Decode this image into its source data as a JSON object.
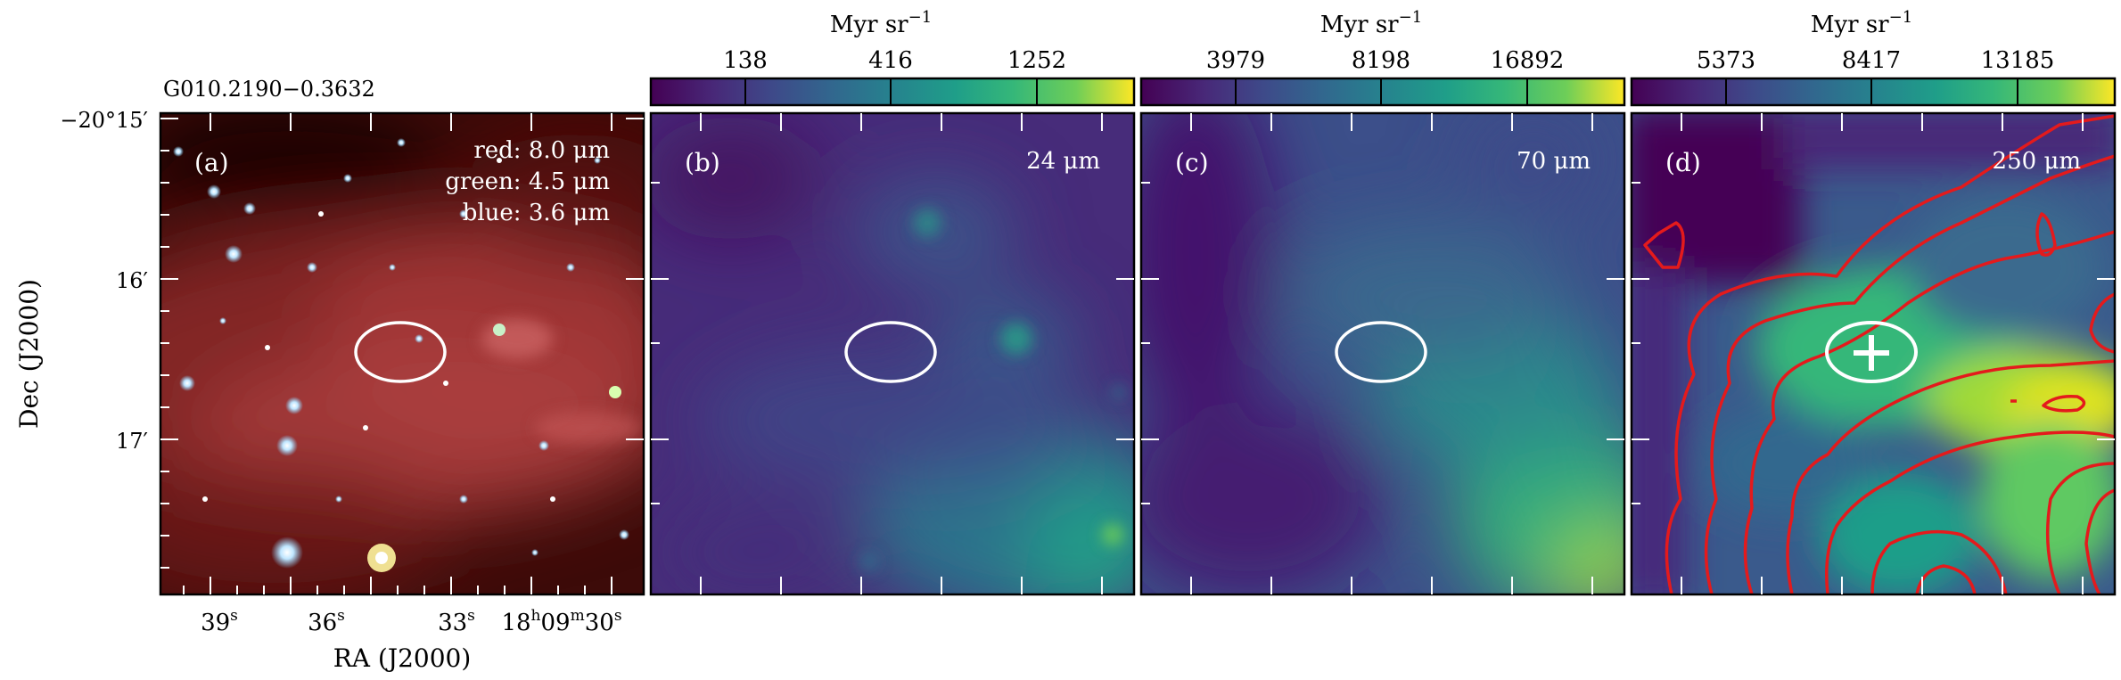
{
  "source_name": "G010.2190−0.3632",
  "axes": {
    "ra_label": "RA (J2000)",
    "dec_label": "Dec (J2000)",
    "ra_ticks": [
      "39",
      "36",
      "33",
      "18",
      "09",
      "30"
    ],
    "ra_tick_units": [
      "s",
      "s",
      "s",
      "h",
      "m",
      "s"
    ],
    "dec_ticks": [
      "−20°15′",
      "16′",
      "17′"
    ]
  },
  "panels": [
    {
      "letter": "(a)",
      "lines": [
        "red: 8.0 μm",
        "green: 4.5 μm",
        "blue: 3.6 μm"
      ],
      "colormap": "rgb-composite"
    },
    {
      "letter": "(b)",
      "band": "24 μm",
      "colormap": "viridis"
    },
    {
      "letter": "(c)",
      "band": "70 μm",
      "colormap": "viridis"
    },
    {
      "letter": "(d)",
      "band": "250 μm",
      "colormap": "viridis",
      "contour_color": "#e41a1c",
      "marker": "plus"
    }
  ],
  "colorbars": [
    {
      "unit": "Myr sr",
      "exponent": "−1",
      "ticks": [
        "138",
        "416",
        "1252"
      ]
    },
    {
      "unit": "Myr sr",
      "exponent": "−1",
      "ticks": [
        "3979",
        "8198",
        "16892"
      ]
    },
    {
      "unit": "Myr sr",
      "exponent": "−1",
      "ticks": [
        "5373",
        "8417",
        "13185"
      ]
    }
  ],
  "colors": {
    "viridis_low": "#440154",
    "viridis_mid": "#21918c",
    "viridis_high": "#fde725",
    "ellipse": "#ffffff"
  }
}
